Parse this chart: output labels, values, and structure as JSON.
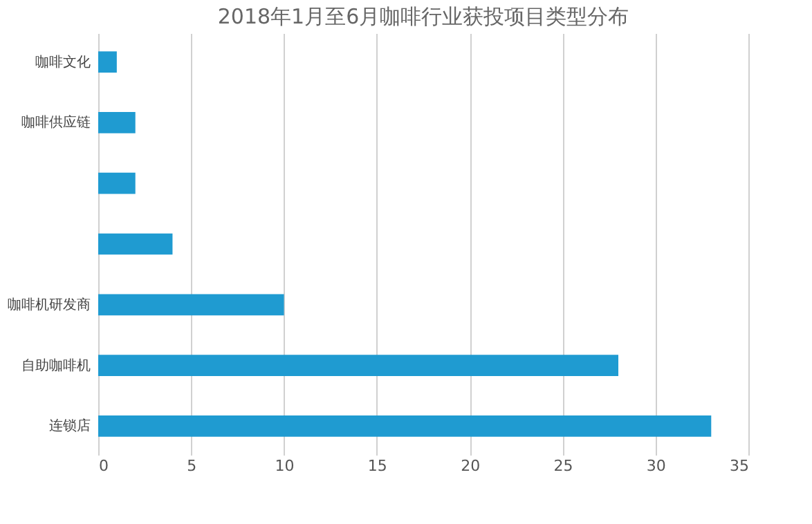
{
  "chart_data": {
    "type": "bar",
    "orientation": "horizontal",
    "title": "2018年1月至6月咖啡行业获投项目类型分布",
    "categories": [
      "咖啡文化",
      "咖啡供应链",
      null,
      null,
      "咖啡机研发商",
      "自助咖啡机",
      "连锁店"
    ],
    "values": [
      1,
      2,
      2,
      4,
      10,
      28,
      33
    ],
    "color": "#1f9bd1",
    "xlim": [
      0,
      35
    ],
    "xticks": [
      0,
      5,
      10,
      15,
      20,
      25,
      30,
      35
    ],
    "grid": "x"
  }
}
